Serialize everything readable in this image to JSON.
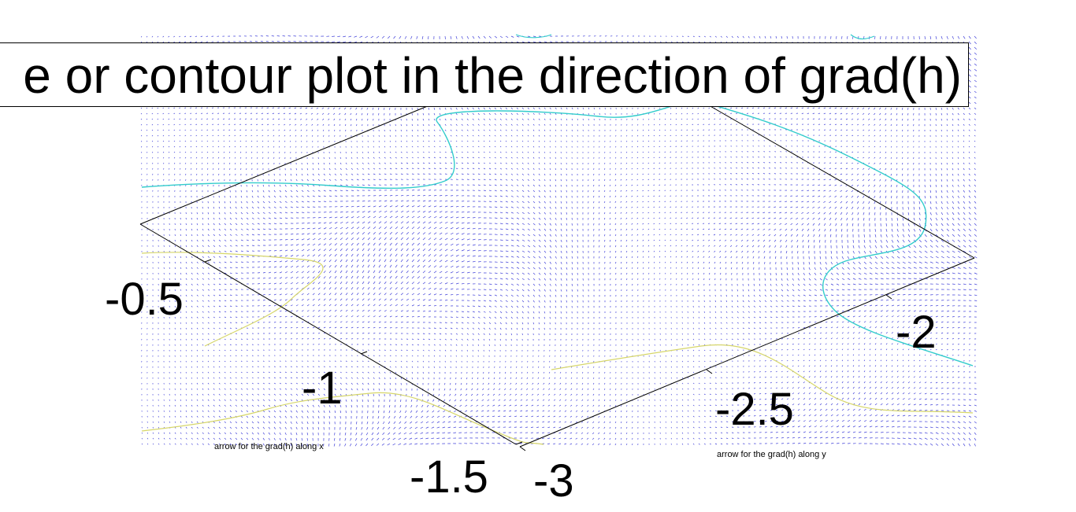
{
  "chart_data": {
    "type": "quiver",
    "title": "e or contour plot in the direction of grad(h)",
    "xlabel": "arrow for the grad(h) along x",
    "ylabel": "arrow for the grad(h) along y",
    "x_ticks": [
      "-0.5",
      "-1",
      "-1.5"
    ],
    "y_ticks": [
      "-2",
      "-2.5",
      "-3"
    ],
    "colors": {
      "arrows": "#0000cc",
      "contour_cyan": "#33cccc",
      "contour_yellow": "#d6d66a",
      "axes": "#000000"
    }
  }
}
